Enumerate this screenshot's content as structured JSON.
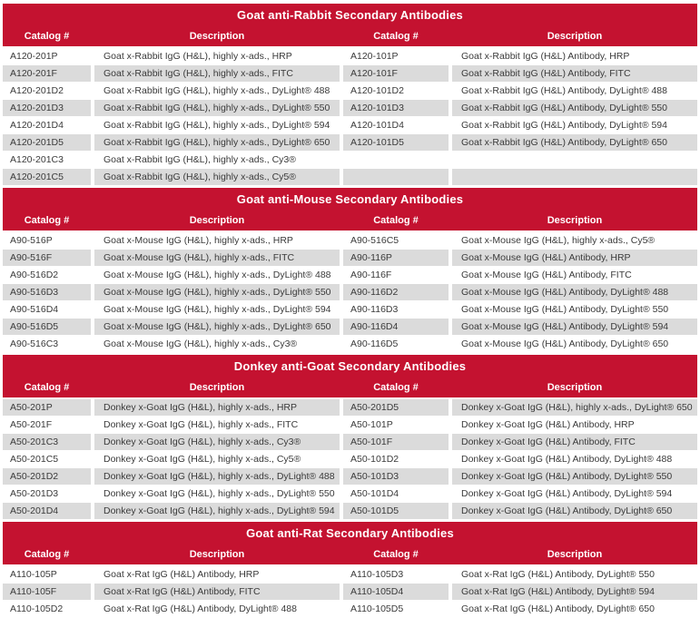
{
  "table": {
    "colors": {
      "header_red": "#C41230",
      "shaded_row": "#DBDBDB",
      "header_text": "#FFFFFF",
      "body_text": "#3A3A3A"
    },
    "column_headers": [
      "Catalog #",
      "Description",
      "Catalog #",
      "Description"
    ],
    "sections": [
      {
        "title": "Goat anti-Rabbit Secondary Antibodies",
        "first_row_shaded": false,
        "rows": [
          [
            "A120-201P",
            "Goat x-Rabbit IgG (H&L), highly x-ads., HRP",
            "A120-101P",
            "Goat x-Rabbit IgG (H&L) Antibody, HRP"
          ],
          [
            "A120-201F",
            "Goat x-Rabbit IgG (H&L), highly x-ads., FITC",
            "A120-101F",
            "Goat x-Rabbit IgG (H&L) Antibody, FITC"
          ],
          [
            "A120-201D2",
            "Goat x-Rabbit IgG (H&L), highly x-ads., DyLight® 488",
            "A120-101D2",
            "Goat x-Rabbit IgG (H&L) Antibody, DyLight® 488"
          ],
          [
            "A120-201D3",
            "Goat x-Rabbit IgG (H&L), highly x-ads., DyLight® 550",
            "A120-101D3",
            "Goat x-Rabbit IgG (H&L) Antibody, DyLight® 550"
          ],
          [
            "A120-201D4",
            "Goat x-Rabbit IgG (H&L), highly x-ads., DyLight® 594",
            "A120-101D4",
            "Goat x-Rabbit IgG (H&L) Antibody, DyLight® 594"
          ],
          [
            "A120-201D5",
            "Goat x-Rabbit IgG (H&L), highly x-ads., DyLight® 650",
            "A120-101D5",
            "Goat x-Rabbit IgG (H&L) Antibody, DyLight® 650"
          ],
          [
            "A120-201C3",
            "Goat x-Rabbit IgG (H&L), highly x-ads., Cy3®",
            "",
            ""
          ],
          [
            "A120-201C5",
            "Goat x-Rabbit IgG (H&L), highly x-ads., Cy5®",
            "",
            ""
          ]
        ]
      },
      {
        "title": "Goat anti-Mouse Secondary Antibodies",
        "first_row_shaded": false,
        "rows": [
          [
            "A90-516P",
            "Goat x-Mouse IgG (H&L), highly x-ads., HRP",
            "A90-516C5",
            "Goat x-Mouse IgG (H&L), highly x-ads., Cy5®"
          ],
          [
            "A90-516F",
            "Goat x-Mouse IgG (H&L), highly x-ads., FITC",
            "A90-116P",
            "Goat x-Mouse IgG (H&L) Antibody, HRP"
          ],
          [
            "A90-516D2",
            "Goat x-Mouse IgG (H&L), highly x-ads., DyLight® 488",
            "A90-116F",
            "Goat x-Mouse IgG (H&L) Antibody, FITC"
          ],
          [
            "A90-516D3",
            "Goat x-Mouse IgG (H&L), highly x-ads., DyLight® 550",
            "A90-116D2",
            "Goat x-Mouse IgG (H&L) Antibody, DyLight® 488"
          ],
          [
            "A90-516D4",
            "Goat x-Mouse IgG (H&L), highly x-ads., DyLight® 594",
            "A90-116D3",
            "Goat x-Mouse IgG (H&L) Antibody, DyLight® 550"
          ],
          [
            "A90-516D5",
            "Goat x-Mouse IgG (H&L), highly x-ads., DyLight® 650",
            "A90-116D4",
            "Goat x-Mouse IgG (H&L) Antibody, DyLight® 594"
          ],
          [
            "A90-516C3",
            "Goat x-Mouse IgG (H&L), highly x-ads., Cy3®",
            "A90-116D5",
            "Goat x-Mouse IgG (H&L) Antibody, DyLight® 650"
          ]
        ]
      },
      {
        "title": "Donkey anti-Goat Secondary Antibodies",
        "first_row_shaded": true,
        "rows": [
          [
            "A50-201P",
            "Donkey x-Goat IgG (H&L), highly x-ads., HRP",
            "A50-201D5",
            "Donkey x-Goat IgG (H&L), highly x-ads., DyLight® 650"
          ],
          [
            "A50-201F",
            "Donkey x-Goat IgG (H&L), highly x-ads., FITC",
            "A50-101P",
            "Donkey x-Goat IgG (H&L) Antibody, HRP"
          ],
          [
            "A50-201C3",
            "Donkey x-Goat IgG (H&L), highly x-ads., Cy3®",
            "A50-101F",
            "Donkey x-Goat IgG (H&L) Antibody, FITC"
          ],
          [
            "A50-201C5",
            "Donkey x-Goat IgG (H&L), highly x-ads., Cy5®",
            "A50-101D2",
            "Donkey x-Goat IgG (H&L) Antibody, DyLight® 488"
          ],
          [
            "A50-201D2",
            "Donkey x-Goat IgG (H&L), highly x-ads., DyLight® 488",
            "A50-101D3",
            "Donkey x-Goat IgG (H&L) Antibody, DyLight® 550"
          ],
          [
            "A50-201D3",
            "Donkey x-Goat IgG (H&L), highly x-ads., DyLight® 550",
            "A50-101D4",
            "Donkey x-Goat IgG (H&L) Antibody, DyLight® 594"
          ],
          [
            "A50-201D4",
            "Donkey x-Goat IgG (H&L), highly x-ads., DyLight® 594",
            "A50-101D5",
            "Donkey x-Goat IgG (H&L) Antibody, DyLight® 650"
          ]
        ]
      },
      {
        "title": "Goat anti-Rat Secondary Antibodies",
        "first_row_shaded": false,
        "rows": [
          [
            "A110-105P",
            "Goat x-Rat IgG (H&L) Antibody, HRP",
            "A110-105D3",
            "Goat x-Rat IgG (H&L) Antibody, DyLight® 550"
          ],
          [
            "A110-105F",
            "Goat x-Rat IgG (H&L) Antibody, FITC",
            "A110-105D4",
            "Goat x-Rat IgG (H&L) Antibody, DyLight® 594"
          ],
          [
            "A110-105D2",
            "Goat x-Rat IgG (H&L) Antibody, DyLight® 488",
            "A110-105D5",
            "Goat x-Rat IgG (H&L) Antibody, DyLight® 650"
          ]
        ]
      }
    ]
  }
}
